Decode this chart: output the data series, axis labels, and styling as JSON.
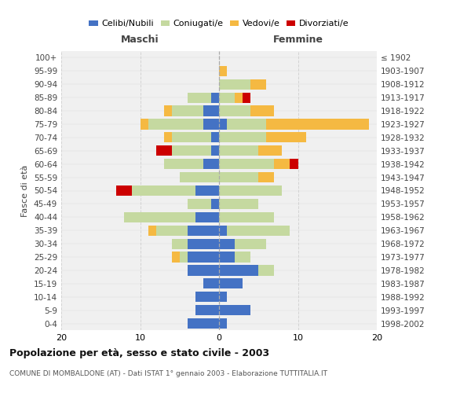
{
  "age_groups": [
    "0-4",
    "5-9",
    "10-14",
    "15-19",
    "20-24",
    "25-29",
    "30-34",
    "35-39",
    "40-44",
    "45-49",
    "50-54",
    "55-59",
    "60-64",
    "65-69",
    "70-74",
    "75-79",
    "80-84",
    "85-89",
    "90-94",
    "95-99",
    "100+"
  ],
  "birth_years": [
    "1998-2002",
    "1993-1997",
    "1988-1992",
    "1983-1987",
    "1978-1982",
    "1973-1977",
    "1968-1972",
    "1963-1967",
    "1958-1962",
    "1953-1957",
    "1948-1952",
    "1943-1947",
    "1938-1942",
    "1933-1937",
    "1928-1932",
    "1923-1927",
    "1918-1922",
    "1913-1917",
    "1908-1912",
    "1903-1907",
    "≤ 1902"
  ],
  "maschi_celibi": [
    4,
    3,
    3,
    2,
    4,
    4,
    4,
    4,
    3,
    1,
    3,
    0,
    2,
    1,
    1,
    2,
    2,
    1,
    0,
    0,
    0
  ],
  "maschi_coniugati": [
    0,
    0,
    0,
    0,
    0,
    1,
    2,
    4,
    9,
    3,
    8,
    5,
    5,
    5,
    5,
    7,
    4,
    3,
    0,
    0,
    0
  ],
  "maschi_vedovi": [
    0,
    0,
    0,
    0,
    0,
    1,
    0,
    1,
    0,
    0,
    0,
    0,
    0,
    0,
    1,
    1,
    1,
    0,
    0,
    0,
    0
  ],
  "maschi_divorziati": [
    0,
    0,
    0,
    0,
    0,
    0,
    0,
    0,
    0,
    0,
    2,
    0,
    0,
    2,
    0,
    0,
    0,
    0,
    0,
    0,
    0
  ],
  "femmine_celibi": [
    1,
    4,
    1,
    3,
    5,
    2,
    2,
    1,
    0,
    0,
    0,
    0,
    0,
    0,
    0,
    1,
    0,
    0,
    0,
    0,
    0
  ],
  "femmine_coniugati": [
    0,
    0,
    0,
    0,
    2,
    2,
    4,
    8,
    7,
    5,
    8,
    5,
    7,
    5,
    6,
    5,
    4,
    2,
    4,
    0,
    0
  ],
  "femmine_vedovi": [
    0,
    0,
    0,
    0,
    0,
    0,
    0,
    0,
    0,
    0,
    0,
    2,
    2,
    3,
    5,
    13,
    3,
    1,
    2,
    1,
    0
  ],
  "femmine_divorziati": [
    0,
    0,
    0,
    0,
    0,
    0,
    0,
    0,
    0,
    0,
    0,
    0,
    1,
    0,
    0,
    0,
    0,
    1,
    0,
    0,
    0
  ],
  "color_celibi": "#4472c4",
  "color_coniugati": "#c5d9a0",
  "color_vedovi": "#f5b942",
  "color_divorziati": "#cc0000",
  "title": "Popolazione per età, sesso e stato civile - 2003",
  "subtitle": "COMUNE DI MOMBALDONE (AT) - Dati ISTAT 1° gennaio 2003 - Elaborazione TUTTITALIA.IT",
  "xlabel_left": "Maschi",
  "xlabel_right": "Femmine",
  "ylabel_left": "Fasce di età",
  "xlim": 20,
  "background_color": "#ffffff",
  "grid_color": "#cccccc"
}
